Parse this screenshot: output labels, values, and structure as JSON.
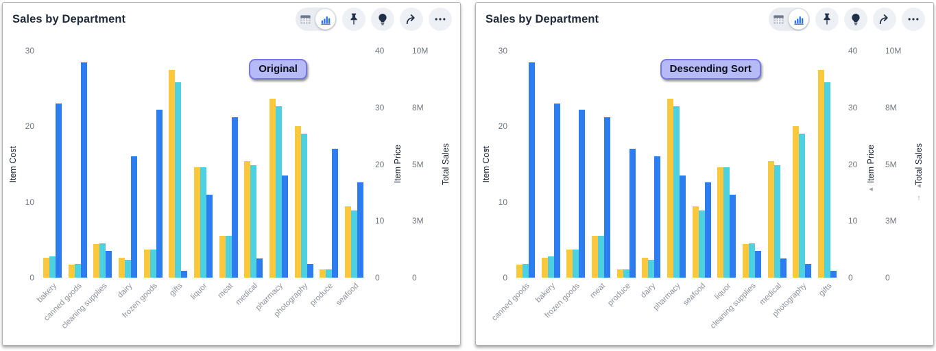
{
  "panels": [
    {
      "title": "Sales by Department",
      "badge": "Original"
    },
    {
      "title": "Sales by Department",
      "badge": "Descending Sort",
      "sort_arrows": {
        "item_cost": "▸",
        "item_price": "◂",
        "total_sales_1": "◂",
        "total_sales_2": "↑"
      }
    }
  ],
  "toolbar": {
    "view_toggle_icons": [
      "table-view-icon",
      "bar-chart-view-icon"
    ],
    "selected_view": "bar-chart",
    "action_icons": [
      "pin-icon",
      "lightbulb-icon",
      "share-arrow-icon",
      "ellipsis-icon"
    ]
  },
  "colors": {
    "item_price_bar": "#FBC83D",
    "total_sales_bar": "#4DD1E1",
    "item_cost_bar": "#2D7DF0",
    "badge_bg": "#B6BAF7",
    "badge_border": "#7479DF",
    "toolbar_icon": "#233049",
    "chart_icon_blue": "#2770EF"
  },
  "chart_data": [
    {
      "type": "bar",
      "title": "Sales by Department",
      "annotation": "Original",
      "grid": false,
      "legend": false,
      "categories": [
        "bakery",
        "canned goods",
        "cleaning supplies",
        "dairy",
        "frozen goods",
        "gifts",
        "liquor",
        "meat",
        "medical",
        "pharmacy",
        "photography",
        "produce",
        "seafood"
      ],
      "series": [
        {
          "name": "Item Price",
          "axis": "Item Price",
          "axis_max": 40,
          "color_key": "item_price_bar",
          "values": [
            3.5,
            2.3,
            5.9,
            3.5,
            5.0,
            36.6,
            19.4,
            7.4,
            20.5,
            31.5,
            26.7,
            1.4,
            12.6
          ]
        },
        {
          "name": "Total Sales",
          "axis": "Total Sales",
          "axis_max": 10,
          "unit": "M",
          "color_key": "total_sales_bar",
          "values": [
            0.95,
            0.6,
            1.5,
            0.8,
            1.25,
            8.6,
            4.85,
            1.85,
            4.95,
            7.55,
            6.35,
            0.35,
            2.95
          ]
        },
        {
          "name": "Item Cost",
          "axis": "Item Cost",
          "axis_max": 30,
          "color_key": "item_cost_bar",
          "values": [
            23,
            28.5,
            3.5,
            16,
            22.2,
            0.9,
            11,
            21.2,
            2.5,
            13.5,
            1.8,
            17,
            12.6
          ]
        }
      ],
      "axes": [
        {
          "label": "Item Cost",
          "side": "left",
          "ticks": [
            "0",
            "10",
            "20",
            "30"
          ],
          "tick_pcts": [
            0,
            33.33,
            66.67,
            100
          ]
        },
        {
          "label": "Item Price",
          "side": "right",
          "ticks": [
            "0",
            "10",
            "20",
            "30",
            "40"
          ],
          "tick_pcts": [
            0,
            25,
            50,
            75,
            100
          ]
        },
        {
          "label": "Total Sales",
          "side": "right",
          "ticks": [
            "0",
            "3M",
            "5M",
            "8M",
            "10M"
          ],
          "tick_pcts": [
            0,
            25,
            50,
            75,
            100
          ]
        }
      ]
    },
    {
      "type": "bar",
      "title": "Sales by Department",
      "annotation": "Descending Sort",
      "sorted_by": "Item Cost descending",
      "grid": false,
      "legend": false,
      "categories": [
        "canned goods",
        "bakery",
        "frozen goods",
        "meat",
        "produce",
        "dairy",
        "pharmacy",
        "seafood",
        "liquor",
        "cleaning supplies",
        "medical",
        "photography",
        "gifts"
      ],
      "series": [
        {
          "name": "Item Price",
          "axis": "Item Price",
          "axis_max": 40,
          "color_key": "item_price_bar",
          "values": [
            2.3,
            3.5,
            5.0,
            7.4,
            1.4,
            3.5,
            31.5,
            12.6,
            19.4,
            5.9,
            20.5,
            26.7,
            36.6
          ]
        },
        {
          "name": "Total Sales",
          "axis": "Total Sales",
          "axis_max": 10,
          "unit": "M",
          "color_key": "total_sales_bar",
          "values": [
            0.6,
            0.95,
            1.25,
            1.85,
            0.35,
            0.8,
            7.55,
            2.95,
            4.85,
            1.5,
            4.95,
            6.35,
            8.6
          ]
        },
        {
          "name": "Item Cost",
          "axis": "Item Cost",
          "axis_max": 30,
          "color_key": "item_cost_bar",
          "values": [
            28.5,
            23,
            22.2,
            21.2,
            17,
            16,
            13.5,
            12.6,
            11,
            3.5,
            2.5,
            1.8,
            0.9
          ]
        }
      ],
      "axes": [
        {
          "label": "Item Cost",
          "side": "left",
          "ticks": [
            "0",
            "10",
            "20",
            "30"
          ],
          "tick_pcts": [
            0,
            33.33,
            66.67,
            100
          ]
        },
        {
          "label": "Item Price",
          "side": "right",
          "ticks": [
            "0",
            "10",
            "20",
            "30",
            "40"
          ],
          "tick_pcts": [
            0,
            25,
            50,
            75,
            100
          ]
        },
        {
          "label": "Total Sales",
          "side": "right",
          "ticks": [
            "0",
            "3M",
            "5M",
            "8M",
            "10M"
          ],
          "tick_pcts": [
            0,
            25,
            50,
            75,
            100
          ]
        }
      ]
    }
  ]
}
